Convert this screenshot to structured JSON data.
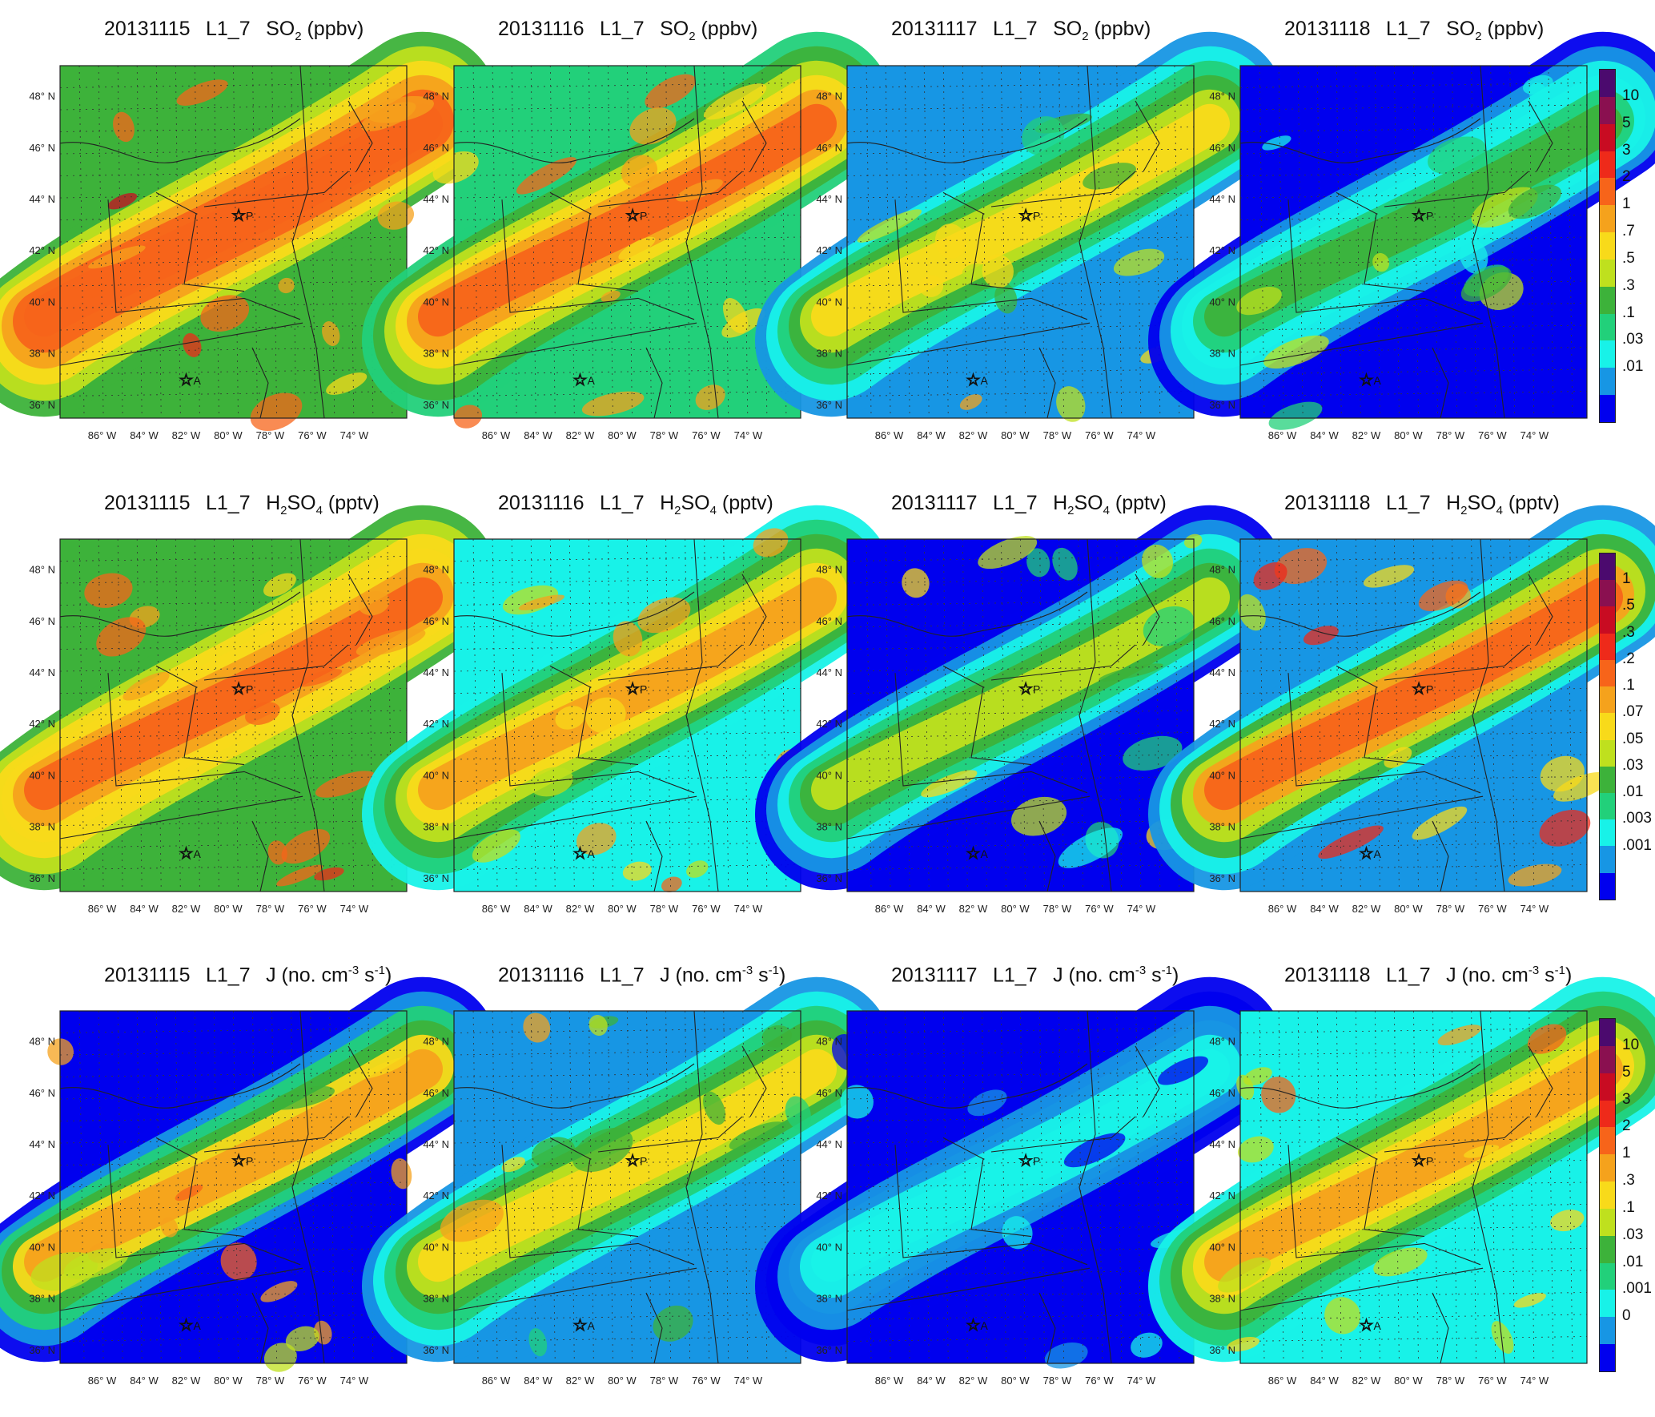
{
  "figure": {
    "rows": [
      {
        "variable": "SO2",
        "titles": [
          {
            "date": "20131115",
            "level": "L1_7",
            "species": "SO",
            "sub": "2",
            "unit": "(ppbv)"
          },
          {
            "date": "20131116",
            "level": "L1_7",
            "species": "SO",
            "sub": "2",
            "unit": "(ppbv)"
          },
          {
            "date": "20131117",
            "level": "L1_7",
            "species": "SO",
            "sub": "2",
            "unit": "(ppbv)"
          },
          {
            "date": "20131118",
            "level": "L1_7",
            "species": "SO",
            "sub": "2",
            "unit": "(ppbv)"
          }
        ],
        "colorbar": {
          "labels": [
            "10",
            "5",
            "3",
            "2",
            "1",
            ".7",
            ".5",
            ".3",
            ".1",
            ".03",
            ".01"
          ],
          "colors": [
            "#4b0a6e",
            "#8a1050",
            "#c80c22",
            "#ee2a1a",
            "#f7641a",
            "#f5a21c",
            "#f8da1a",
            "#bfe01e",
            "#3db23a",
            "#22d07a",
            "#18f2e8",
            "#1796e4",
            "#0000ee"
          ]
        }
      },
      {
        "variable": "H2SO4",
        "titles": [
          {
            "date": "20131115",
            "level": "L1_7",
            "species": "H",
            "sub": "2",
            "species2": "SO",
            "sub2": "4",
            "unit": "(pptv)"
          },
          {
            "date": "20131116",
            "level": "L1_7",
            "species": "H",
            "sub": "2",
            "species2": "SO",
            "sub2": "4",
            "unit": "(pptv)"
          },
          {
            "date": "20131117",
            "level": "L1_7",
            "species": "H",
            "sub": "2",
            "species2": "SO",
            "sub2": "4",
            "unit": "(pptv)"
          },
          {
            "date": "20131118",
            "level": "L1_7",
            "species": "H",
            "sub": "2",
            "species2": "SO",
            "sub2": "4",
            "unit": "(pptv)"
          }
        ],
        "colorbar": {
          "labels": [
            "1",
            ".5",
            ".3",
            ".2",
            ".1",
            ".07",
            ".05",
            ".03",
            ".01",
            ".003",
            ".001"
          ],
          "colors": [
            "#4b0a6e",
            "#8a1050",
            "#c80c22",
            "#ee2a1a",
            "#f7641a",
            "#f5a21c",
            "#f8da1a",
            "#bfe01e",
            "#3db23a",
            "#22d07a",
            "#18f2e8",
            "#1796e4",
            "#0000ee"
          ]
        }
      },
      {
        "variable": "J",
        "titles": [
          {
            "date": "20131115",
            "level": "L1_7",
            "species": "J",
            "unit_prefix": "(no. cm",
            "unit_sup": "-3",
            "unit_mid": " s",
            "unit_sup2": "-1",
            "unit_end": ")"
          },
          {
            "date": "20131116",
            "level": "L1_7",
            "species": "J",
            "unit_prefix": "(no. cm",
            "unit_sup": "-3",
            "unit_mid": " s",
            "unit_sup2": "-1",
            "unit_end": ")"
          },
          {
            "date": "20131117",
            "level": "L1_7",
            "species": "J",
            "unit_prefix": "(no. cm",
            "unit_sup": "-3",
            "unit_mid": " s",
            "unit_sup2": "-1",
            "unit_end": ")"
          },
          {
            "date": "20131118",
            "level": "L1_7",
            "species": "J",
            "unit_prefix": "(no. cm",
            "unit_sup": "-3",
            "unit_mid": " s",
            "unit_sup2": "-1",
            "unit_end": ")"
          }
        ],
        "colorbar": {
          "labels": [
            "10",
            "5",
            "3",
            "2",
            "1",
            ".3",
            ".1",
            ".03",
            ".01",
            ".001",
            "0"
          ],
          "colors": [
            "#4b0a6e",
            "#8a1050",
            "#c80c22",
            "#ee2a1a",
            "#f7641a",
            "#f5a21c",
            "#f8da1a",
            "#bfe01e",
            "#3db23a",
            "#22d07a",
            "#18f2e8",
            "#1796e4",
            "#0000ee"
          ]
        }
      }
    ],
    "lat_labels": [
      "48° N",
      "46° N",
      "44° N",
      "42° N",
      "40° N",
      "38° N",
      "36° N"
    ],
    "lon_labels": [
      "86° W",
      "84° W",
      "82° W",
      "80° W",
      "78° W",
      "76° W",
      "74° W"
    ],
    "sites": [
      {
        "label": "P",
        "lat": 43.4,
        "lon": -79.5
      },
      {
        "label": "A",
        "lat": 37.0,
        "lon": -82.0
      }
    ],
    "map_extent": {
      "lon_min": -88.0,
      "lon_max": -71.5,
      "lat_min": 35.5,
      "lat_max": 49.2
    }
  }
}
